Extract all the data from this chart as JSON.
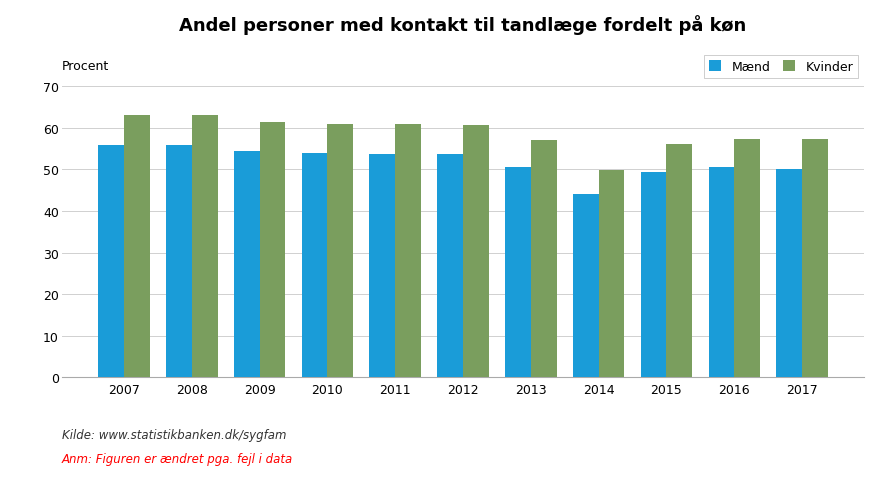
{
  "title": "Andel personer med kontakt til tandlæge fordelt på køn",
  "ylabel": "Procent",
  "years": [
    2007,
    2008,
    2009,
    2010,
    2011,
    2012,
    2013,
    2014,
    2015,
    2016,
    2017
  ],
  "maend": [
    56.0,
    56.0,
    54.5,
    54.0,
    53.8,
    53.7,
    50.5,
    44.0,
    49.3,
    50.5,
    50.2
  ],
  "kvinder": [
    63.0,
    63.0,
    61.5,
    61.0,
    61.0,
    60.7,
    57.2,
    49.8,
    56.2,
    57.4,
    57.4
  ],
  "maend_color": "#1a9cd8",
  "kvinder_color": "#7a9e5e",
  "background_color": "#ffffff",
  "ylim": [
    0,
    70
  ],
  "yticks": [
    0,
    10,
    20,
    30,
    40,
    50,
    60,
    70
  ],
  "legend_labels": [
    "Mænd",
    "Kvinder"
  ],
  "source_text": "Kilde: www.statistikbanken.dk/sygfam",
  "note_text": "Anm: Figuren er ændret pga. fejl i data",
  "bar_width": 0.38,
  "title_fontsize": 13,
  "axis_label_fontsize": 9,
  "tick_fontsize": 9,
  "legend_fontsize": 9,
  "source_fontsize": 8.5,
  "note_fontsize": 8.5
}
